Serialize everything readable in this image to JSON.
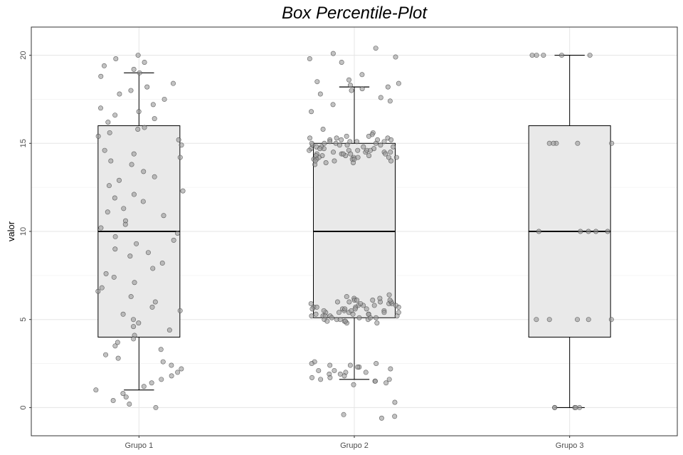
{
  "chart_data": {
    "type": "box",
    "title": "Box Percentile-Plot",
    "xlabel": "",
    "ylabel": "valor",
    "categories": [
      "Grupo 1",
      "Grupo 2",
      "Grupo 3"
    ],
    "ylim": [
      -1.6,
      21.6
    ],
    "yticks": [
      0,
      5,
      10,
      15,
      20
    ],
    "grid": true,
    "legend": "none",
    "colors": {
      "panel_border": "#333333",
      "grid_major": "#e5e5e5",
      "grid_minor": "#f3f3f3",
      "box_fill": "#e9e9e9",
      "box_line": "#000000",
      "point_fill": "#999999",
      "point_stroke": "#444444"
    },
    "boxes": [
      {
        "category": "Grupo 1",
        "whisker_low": 1,
        "q1": 4,
        "median": 10,
        "q3": 16,
        "whisker_high": 19
      },
      {
        "category": "Grupo 2",
        "whisker_low": 1.6,
        "q1": 5.1,
        "median": 10,
        "q3": 15,
        "whisker_high": 18.2
      },
      {
        "category": "Grupo 3",
        "whisker_low": 0,
        "q1": 4,
        "median": 10,
        "q3": 16,
        "whisker_high": 20
      }
    ],
    "points": [
      {
        "group": "Grupo 1",
        "y": [
          20,
          19.6,
          19.4,
          19.8,
          19.2,
          19,
          18.8,
          18.4,
          18.2,
          18,
          17.8,
          17.5,
          17.2,
          17,
          16.8,
          16.6,
          16.4,
          16.2,
          15.9,
          15.8,
          15.6,
          15.4,
          15.2,
          14.9,
          14.6,
          14.4,
          14.2,
          14,
          13.8,
          13.4,
          13.1,
          12.9,
          12.6,
          12.3,
          12.1,
          11.9,
          11.7,
          11.3,
          11.1,
          10.9,
          10.6,
          10.4,
          10.2,
          9.9,
          9.7,
          9.5,
          9.3,
          9,
          8.8,
          8.6,
          8.2,
          7.9,
          7.6,
          7.4,
          7.1,
          6.8,
          6.6,
          6.3,
          6,
          5.7,
          5.5,
          5.3,
          5,
          4.8,
          4.6,
          4.4,
          4.1,
          3.9,
          3.7,
          3.5,
          3.3,
          3,
          2.8,
          2.6,
          2.4,
          2.2,
          2,
          1.8,
          1.6,
          1.4,
          1.2,
          1,
          0.8,
          0.6,
          0.4,
          0.2,
          0
        ]
      },
      {
        "group": "Grupo 2",
        "y": [
          20.4,
          20.1,
          19.9,
          19.8,
          19.6,
          18.9,
          18.6,
          18.5,
          18.4,
          18.3,
          18.2,
          18.1,
          18,
          17.8,
          17.6,
          17.4,
          17.2,
          16.8,
          15.8,
          15.6,
          15.5,
          15.4,
          15.3,
          15.2,
          15.1,
          15,
          14.9,
          14.8,
          14.7,
          14.6,
          14.5,
          14.4,
          14.3,
          14.2,
          14.1,
          14,
          13.9,
          13.8,
          15.2,
          15.1,
          15,
          14.9,
          14.8,
          14.7,
          14.6,
          14.5,
          14.4,
          14.3,
          14.2,
          14.1,
          15.4,
          15.3,
          15.2,
          15.1,
          15,
          14.9,
          14.8,
          14.7,
          14.6,
          14.5,
          14.4,
          14.3,
          14.2,
          14.1,
          14,
          13.9,
          15.3,
          15,
          14.8,
          14.6,
          14.4,
          14.2,
          14,
          15.1,
          14.9,
          14.7,
          14.5,
          14.3,
          14.1,
          15.2,
          14.6,
          14.4,
          14.2,
          6.4,
          6.3,
          6.2,
          6.1,
          6,
          5.9,
          5.8,
          5.7,
          5.6,
          5.5,
          5.4,
          5.3,
          5.2,
          5.1,
          5,
          4.9,
          4.8,
          6.2,
          6.1,
          6,
          5.9,
          5.8,
          5.7,
          5.6,
          5.5,
          5.4,
          5.3,
          5.2,
          5.1,
          5,
          4.9,
          6.1,
          6,
          5.9,
          5.8,
          5.7,
          5.6,
          5.5,
          5.4,
          5.3,
          5.2,
          5.1,
          5,
          6,
          5.8,
          5.6,
          5.4,
          5.2,
          5,
          4.8,
          6.1,
          5.9,
          5.7,
          5.5,
          5.3,
          5.1,
          4.9,
          5.6,
          5.4,
          5.2,
          2.6,
          2.5,
          2.4,
          2.3,
          2.2,
          2.1,
          2,
          1.9,
          1.8,
          1.7,
          1.6,
          1.5,
          1.4,
          2.5,
          2.3,
          2.1,
          1.9,
          1.7,
          1.5,
          1.3,
          2.4,
          2,
          1.6,
          0.3,
          -0.4,
          -0.5,
          -0.6
        ]
      },
      {
        "group": "Grupo 3",
        "y": [
          20,
          20,
          20,
          20,
          20,
          15,
          15,
          15,
          15,
          15,
          10,
          10,
          10,
          10,
          10,
          5,
          5,
          5,
          5,
          5,
          0,
          0,
          0,
          0,
          0
        ]
      }
    ]
  }
}
